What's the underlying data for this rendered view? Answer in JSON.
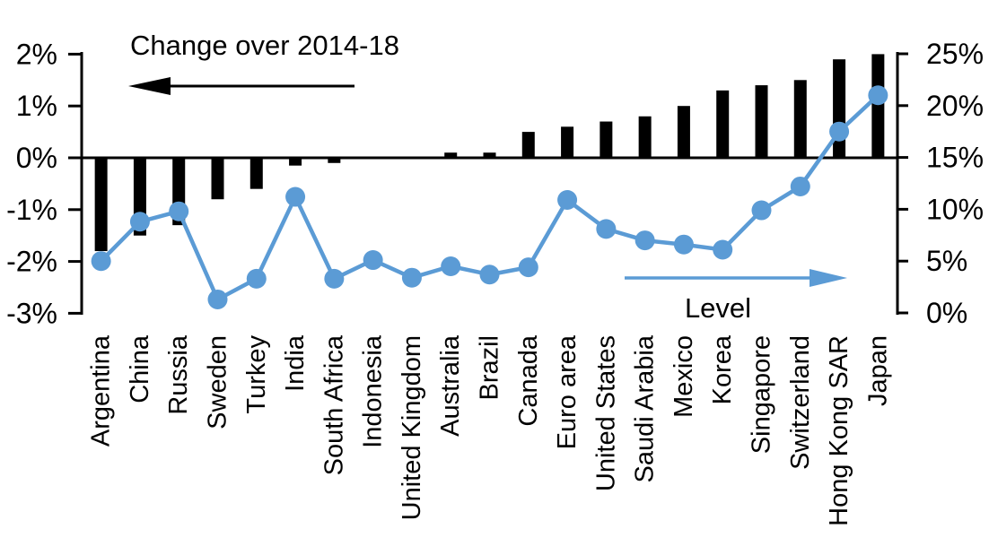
{
  "chart_data": {
    "type": "combo_bar_line",
    "title": "Change over 2014-18",
    "categories": [
      "Argentina",
      "China",
      "Russia",
      "Sweden",
      "Turkey",
      "India",
      "South Africa",
      "Indonesia",
      "United Kingdom",
      "Australia",
      "Brazil",
      "Canada",
      "Euro area",
      "United States",
      "Saudi Arabia",
      "Mexico",
      "Korea",
      "Singapore",
      "Switzerland",
      "Hong Kong SAR",
      "Japan"
    ],
    "series": [
      {
        "name": "Change over 2014-18",
        "type": "bar",
        "axis": "left",
        "color": "#000000",
        "values": [
          -1.8,
          -1.5,
          -1.3,
          -0.8,
          -0.6,
          -0.15,
          -0.1,
          0,
          0,
          0.1,
          0.1,
          0.5,
          0.6,
          0.7,
          0.8,
          1.0,
          1.3,
          1.4,
          1.5,
          1.9,
          2.0
        ]
      },
      {
        "name": "Level",
        "type": "line",
        "axis": "right",
        "color": "#5B9BD5",
        "values": [
          5.0,
          8.8,
          9.8,
          1.3,
          3.3,
          11.2,
          3.3,
          5.1,
          3.4,
          4.5,
          3.7,
          4.4,
          10.9,
          8.1,
          7.0,
          6.6,
          6.1,
          9.9,
          12.2,
          17.5,
          21.0
        ]
      }
    ],
    "left_axis": {
      "tick_labels": [
        "2%",
        "1%",
        "0%",
        "-1%",
        "-2%",
        "-3%"
      ],
      "tick_values": [
        2,
        1,
        0,
        -1,
        -2,
        -3
      ],
      "range": [
        -3,
        2
      ]
    },
    "right_axis": {
      "tick_labels": [
        "25%",
        "20%",
        "15%",
        "10%",
        "5%",
        "0%"
      ],
      "tick_values": [
        25,
        20,
        15,
        10,
        5,
        0
      ],
      "range": [
        0,
        25
      ]
    },
    "annotations": {
      "bar_series_label": "Change over 2014-18",
      "bar_arrow_direction": "left",
      "line_series_label": "Level",
      "line_arrow_direction": "right"
    },
    "grid": false,
    "legend_position": "annotated-arrows"
  },
  "colors": {
    "bar": "#000000",
    "line": "#5B9BD5",
    "text": "#000000",
    "background": "#FFFFFF"
  }
}
